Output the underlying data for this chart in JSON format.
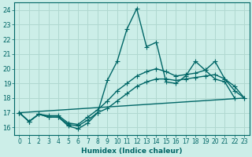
{
  "xlabel": "Humidex (Indice chaleur)",
  "xlim": [
    -0.5,
    23.5
  ],
  "ylim": [
    15.5,
    24.5
  ],
  "yticks": [
    16,
    17,
    18,
    19,
    20,
    21,
    22,
    23,
    24
  ],
  "xticks": [
    0,
    1,
    2,
    3,
    4,
    5,
    6,
    7,
    8,
    9,
    10,
    11,
    12,
    13,
    14,
    15,
    16,
    17,
    18,
    19,
    20,
    21,
    22,
    23
  ],
  "bg_color": "#cceee8",
  "line_color": "#006666",
  "grid_color": "#b0d8d0",
  "lines": [
    {
      "x": [
        0,
        1,
        2,
        3,
        4,
        5,
        6,
        7,
        8,
        9,
        10,
        11,
        12,
        13,
        14,
        15,
        16,
        17,
        18,
        19,
        20,
        21,
        22
      ],
      "y": [
        17.0,
        16.4,
        16.9,
        16.7,
        16.7,
        16.1,
        15.9,
        16.3,
        17.0,
        19.2,
        20.5,
        22.7,
        24.1,
        21.5,
        21.8,
        19.1,
        19.0,
        19.5,
        20.5,
        19.9,
        19.3,
        19.1,
        18.0
      ],
      "marker": "+",
      "markersize": 4,
      "linewidth": 1.0
    },
    {
      "x": [
        0,
        23
      ],
      "y": [
        17.0,
        18.0
      ],
      "marker": null,
      "markersize": 0,
      "linewidth": 1.0
    },
    {
      "x": [
        0,
        1,
        2,
        3,
        4,
        5,
        6,
        7,
        8,
        9,
        10,
        11,
        12,
        13,
        14,
        15,
        16,
        17,
        18,
        19,
        20,
        21,
        22,
        23
      ],
      "y": [
        17.0,
        16.4,
        16.9,
        16.8,
        16.8,
        16.3,
        16.2,
        16.7,
        17.2,
        17.8,
        18.5,
        19.0,
        19.5,
        19.8,
        20.0,
        19.8,
        19.5,
        19.6,
        19.7,
        19.9,
        20.5,
        19.3,
        18.5,
        18.0
      ],
      "marker": "+",
      "markersize": 4,
      "linewidth": 1.0
    },
    {
      "x": [
        0,
        1,
        2,
        3,
        4,
        5,
        6,
        7,
        8,
        9,
        10,
        11,
        12,
        13,
        14,
        15,
        16,
        17,
        18,
        19,
        20,
        21,
        22,
        23
      ],
      "y": [
        17.0,
        16.4,
        16.9,
        16.7,
        16.7,
        16.2,
        16.1,
        16.5,
        17.0,
        17.3,
        17.8,
        18.3,
        18.8,
        19.1,
        19.3,
        19.3,
        19.2,
        19.3,
        19.4,
        19.5,
        19.6,
        19.3,
        18.8,
        18.0
      ],
      "marker": "+",
      "markersize": 4,
      "linewidth": 1.0
    }
  ]
}
